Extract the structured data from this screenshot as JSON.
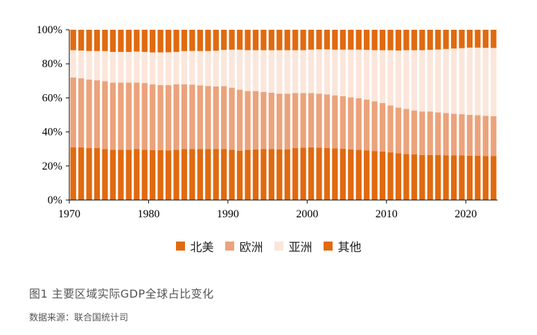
{
  "chart_data": {
    "type": "bar",
    "stacked": true,
    "normalized": true,
    "x": [
      1970,
      1971,
      1972,
      1973,
      1974,
      1975,
      1976,
      1977,
      1978,
      1979,
      1980,
      1981,
      1982,
      1983,
      1984,
      1985,
      1986,
      1987,
      1988,
      1989,
      1990,
      1991,
      1992,
      1993,
      1994,
      1995,
      1996,
      1997,
      1998,
      1999,
      2000,
      2001,
      2002,
      2003,
      2004,
      2005,
      2006,
      2007,
      2008,
      2009,
      2010,
      2011,
      2012,
      2013,
      2014,
      2015,
      2016,
      2017,
      2018,
      2019,
      2020,
      2021,
      2022,
      2023
    ],
    "xticks": [
      "1970",
      "1980",
      "1990",
      "2000",
      "2010",
      "2020"
    ],
    "ylim": [
      0,
      100
    ],
    "yticks": [
      "0%",
      "20%",
      "40%",
      "60%",
      "80%",
      "100%"
    ],
    "series": [
      {
        "name": "北美",
        "color": "#E06A10",
        "values": [
          31,
          31,
          30.5,
          30.5,
          30,
          29.5,
          29.5,
          29.5,
          30,
          29.5,
          29.3,
          29.3,
          29.2,
          29.5,
          30,
          30,
          30,
          30,
          30,
          30,
          29.5,
          29,
          29.5,
          29.7,
          30,
          30,
          29.8,
          29.8,
          30.5,
          30.8,
          31,
          30.8,
          30.5,
          30.3,
          30.2,
          29.8,
          29.5,
          29.2,
          28.8,
          28.5,
          28,
          27.5,
          27,
          26.8,
          26.5,
          26.5,
          26.4,
          26.3,
          26.2,
          26.2,
          26.1,
          26,
          25.9,
          25.8
        ]
      },
      {
        "name": "欧洲",
        "color": "#EBA37B",
        "values": [
          41,
          40.5,
          40.3,
          39.8,
          39.8,
          39.5,
          39.5,
          39.5,
          39,
          39.2,
          38.7,
          38.2,
          38.3,
          38.5,
          38,
          37.8,
          37.3,
          37,
          36.7,
          36.9,
          36.5,
          35.8,
          34.5,
          34.3,
          33.5,
          33,
          32.7,
          32.7,
          32.3,
          32,
          31.8,
          31.7,
          31.5,
          31.2,
          30.8,
          30.5,
          30.3,
          29.8,
          29.2,
          28.5,
          27.5,
          26.8,
          26.5,
          25.8,
          25.5,
          25.5,
          25.1,
          24.8,
          24.5,
          24.2,
          23.9,
          23.8,
          23.6,
          23.4
        ]
      },
      {
        "name": "亚洲",
        "color": "#FBE6DB",
        "values": [
          16,
          16.3,
          16.7,
          17.2,
          17.7,
          18,
          18,
          18,
          18.2,
          18.3,
          18.7,
          19.2,
          19.3,
          19,
          19.5,
          19.8,
          20.2,
          20.5,
          21,
          21.3,
          22.3,
          23.5,
          24,
          24,
          24.5,
          25,
          25.5,
          25.5,
          25.2,
          25.2,
          25.5,
          26,
          26.5,
          26.8,
          27.3,
          28,
          28.5,
          29.2,
          30,
          31,
          32.5,
          33.5,
          34.5,
          35.4,
          36,
          36.2,
          36.9,
          37.6,
          38.3,
          38.8,
          39.5,
          39.7,
          39.9,
          40.1
        ]
      },
      {
        "name": "其他",
        "color": "#E06A10",
        "values": [
          12,
          12.2,
          12.5,
          12.5,
          12.5,
          13,
          13,
          13,
          12.8,
          13,
          13.3,
          13.3,
          13.2,
          13,
          12.5,
          12.4,
          12.5,
          12.5,
          12.3,
          11.8,
          11.7,
          11.7,
          12,
          12,
          12,
          12,
          12,
          12,
          12,
          12,
          11.7,
          11.5,
          11.5,
          11.7,
          11.7,
          11.7,
          11.7,
          11.8,
          12,
          12,
          12,
          12.2,
          12,
          12,
          12,
          11.8,
          11.6,
          11.3,
          11,
          10.8,
          10.5,
          10.5,
          10.6,
          10.7
        ]
      }
    ]
  },
  "legend": {
    "items": [
      {
        "label": "北美",
        "color": "#E06A10"
      },
      {
        "label": "欧洲",
        "color": "#EBA37B"
      },
      {
        "label": "亚洲",
        "color": "#FBE6DB"
      },
      {
        "label": "其他",
        "color": "#E06A10"
      }
    ]
  },
  "caption": {
    "text": "图1  主要区域实际GDP全球占比变化"
  },
  "source": {
    "text": "数据来源：联合国统计司"
  }
}
